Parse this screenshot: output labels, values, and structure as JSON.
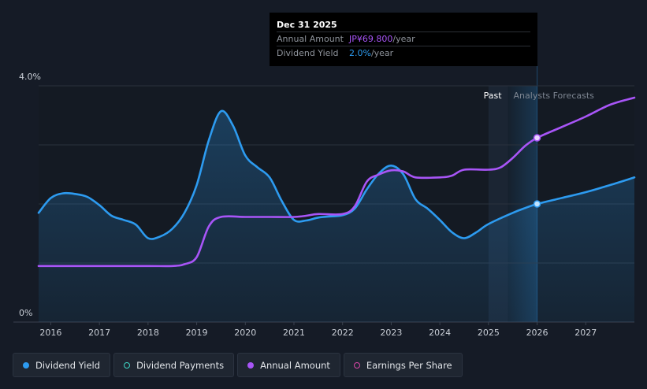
{
  "colors": {
    "dividend_yield": "#2d9bf0",
    "annual_amount": "#a855f7",
    "dividend_payments": "#3fd6c5",
    "earnings_per_share": "#d946a8",
    "background": "#151b26"
  },
  "tooltip": {
    "date": "Dec 31 2025",
    "annual_amount_label": "Annual Amount",
    "annual_amount_value": "JP¥69.800",
    "annual_amount_unit": "/year",
    "dividend_yield_label": "Dividend Yield",
    "dividend_yield_value": "2.0%",
    "dividend_yield_unit": "/year"
  },
  "regions": {
    "past_label": "Past",
    "forecast_label": "Analysts Forecasts"
  },
  "legend": [
    {
      "label": "Dividend Yield",
      "color": "#2d9bf0",
      "filled": true
    },
    {
      "label": "Dividend Payments",
      "color": "#3fd6c5",
      "filled": false
    },
    {
      "label": "Annual Amount",
      "color": "#a855f7",
      "filled": true
    },
    {
      "label": "Earnings Per Share",
      "color": "#d946a8",
      "filled": false
    }
  ],
  "chart_data": {
    "type": "line",
    "x_ticks": [
      "2016",
      "2017",
      "2018",
      "2019",
      "2020",
      "2021",
      "2022",
      "2023",
      "2024",
      "2025",
      "2026",
      "2027"
    ],
    "y_ticks": [
      "0%",
      "4.0%"
    ],
    "ylim": [
      0,
      4.0
    ],
    "xlim": [
      2015.75,
      2028.0
    ],
    "grid": true,
    "forecast_start": 2025.4,
    "series": [
      {
        "name": "Dividend Yield",
        "unit": "%",
        "area": true,
        "points": [
          [
            2015.75,
            1.85
          ],
          [
            2016.0,
            2.1
          ],
          [
            2016.25,
            2.18
          ],
          [
            2016.5,
            2.17
          ],
          [
            2016.75,
            2.12
          ],
          [
            2017.0,
            1.98
          ],
          [
            2017.25,
            1.8
          ],
          [
            2017.5,
            1.73
          ],
          [
            2017.75,
            1.65
          ],
          [
            2018.0,
            1.42
          ],
          [
            2018.25,
            1.45
          ],
          [
            2018.5,
            1.58
          ],
          [
            2018.75,
            1.85
          ],
          [
            2019.0,
            2.32
          ],
          [
            2019.25,
            3.08
          ],
          [
            2019.5,
            3.57
          ],
          [
            2019.75,
            3.32
          ],
          [
            2020.0,
            2.82
          ],
          [
            2020.25,
            2.62
          ],
          [
            2020.5,
            2.45
          ],
          [
            2020.75,
            2.05
          ],
          [
            2021.0,
            1.73
          ],
          [
            2021.25,
            1.72
          ],
          [
            2021.5,
            1.77
          ],
          [
            2021.75,
            1.79
          ],
          [
            2022.0,
            1.81
          ],
          [
            2022.25,
            1.92
          ],
          [
            2022.5,
            2.25
          ],
          [
            2022.75,
            2.52
          ],
          [
            2023.0,
            2.65
          ],
          [
            2023.25,
            2.5
          ],
          [
            2023.5,
            2.08
          ],
          [
            2023.75,
            1.92
          ],
          [
            2024.0,
            1.73
          ],
          [
            2024.25,
            1.52
          ],
          [
            2024.5,
            1.42
          ],
          [
            2024.75,
            1.52
          ],
          [
            2025.0,
            1.66
          ],
          [
            2025.5,
            1.85
          ],
          [
            2025.75,
            1.93
          ],
          [
            2026.0,
            2.0
          ],
          [
            2026.5,
            2.1
          ],
          [
            2027.0,
            2.2
          ],
          [
            2027.5,
            2.32
          ],
          [
            2028.0,
            2.45
          ]
        ]
      },
      {
        "name": "Annual Amount",
        "unit": "JP¥",
        "area": false,
        "points": [
          [
            2015.75,
            0.95
          ],
          [
            2016.0,
            0.95
          ],
          [
            2017.0,
            0.95
          ],
          [
            2018.0,
            0.95
          ],
          [
            2018.5,
            0.95
          ],
          [
            2018.75,
            0.98
          ],
          [
            2019.0,
            1.1
          ],
          [
            2019.25,
            1.62
          ],
          [
            2019.5,
            1.78
          ],
          [
            2020.0,
            1.78
          ],
          [
            2020.5,
            1.78
          ],
          [
            2021.0,
            1.78
          ],
          [
            2021.25,
            1.8
          ],
          [
            2021.5,
            1.83
          ],
          [
            2022.0,
            1.83
          ],
          [
            2022.25,
            1.96
          ],
          [
            2022.5,
            2.38
          ],
          [
            2022.75,
            2.5
          ],
          [
            2023.0,
            2.57
          ],
          [
            2023.25,
            2.55
          ],
          [
            2023.5,
            2.45
          ],
          [
            2024.0,
            2.45
          ],
          [
            2024.25,
            2.48
          ],
          [
            2024.5,
            2.58
          ],
          [
            2025.0,
            2.58
          ],
          [
            2025.25,
            2.62
          ],
          [
            2025.5,
            2.78
          ],
          [
            2025.75,
            2.98
          ],
          [
            2026.0,
            3.12
          ],
          [
            2026.5,
            3.3
          ],
          [
            2027.0,
            3.48
          ],
          [
            2027.5,
            3.68
          ],
          [
            2028.0,
            3.8
          ]
        ]
      }
    ],
    "highlight": {
      "x": 2026.0,
      "annual_amount": 3.12,
      "dividend_yield": 2.0
    }
  }
}
